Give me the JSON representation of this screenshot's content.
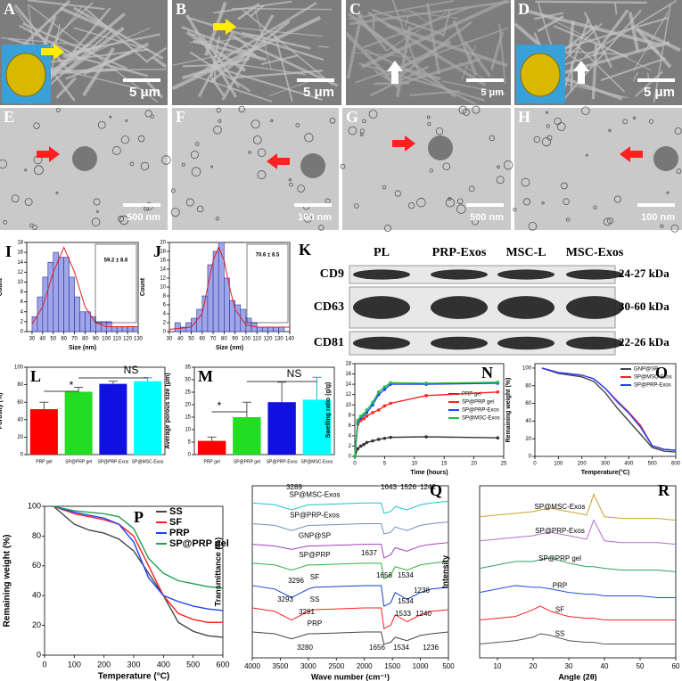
{
  "images": [
    {
      "label": "A",
      "scale": "5 μm"
    },
    {
      "label": "B",
      "scale": "5 μm"
    },
    {
      "label": "C",
      "scale": "5 μm"
    },
    {
      "label": "D",
      "scale": "5 μm"
    },
    {
      "label": "E",
      "scale": "500 nm"
    },
    {
      "label": "F",
      "scale": "100 nm"
    },
    {
      "label": "G",
      "scale": "500 nm"
    },
    {
      "label": "H",
      "scale": "100 nm"
    }
  ],
  "western_blot": {
    "panel": "K",
    "lanes": [
      "PL",
      "PRP-Exos",
      "MSC-L",
      "MSC-Exos"
    ],
    "markers": [
      "CD9",
      "CD63",
      "CD81"
    ],
    "sizes": [
      "24-27 kDa",
      "30-60 kDa",
      "22-26 kDa"
    ]
  },
  "chart_data": [
    {
      "type": "histogram",
      "panel": "I",
      "xlabel": "Size (nm)",
      "ylabel": "Count",
      "annotations": [
        "59.2 ± 8.6"
      ],
      "color": "#9fa6e8",
      "bins": [
        30,
        35,
        40,
        45,
        50,
        55,
        60,
        65,
        70,
        75,
        80,
        85,
        90,
        95,
        100,
        105,
        110,
        115,
        120,
        125,
        130
      ],
      "values": [
        3,
        7,
        11,
        14,
        16,
        15,
        15,
        11,
        7,
        4,
        4,
        3,
        2,
        2,
        2,
        1,
        1,
        1,
        1,
        1
      ],
      "fit": {
        "x": [
          30,
          40,
          50,
          60,
          70,
          80,
          90,
          100,
          110,
          120,
          130
        ],
        "values": [
          1.5,
          5,
          12,
          17,
          12,
          5,
          1.8,
          1,
          1,
          1,
          1
        ]
      },
      "xlim": [
        25,
        130
      ],
      "xticks": [
        30,
        40,
        50,
        60,
        70,
        80,
        90,
        100,
        110,
        120,
        130
      ],
      "ylim": [
        0,
        18
      ],
      "yticks": [
        0,
        2,
        4,
        6,
        8,
        10,
        12,
        14,
        16,
        18
      ]
    },
    {
      "type": "histogram",
      "panel": "J",
      "xlabel": "Size (nm)",
      "ylabel": "Count",
      "annotations": [
        "70.6 ± 8.5"
      ],
      "color": "#9fa6e8",
      "bins": [
        35,
        40,
        45,
        50,
        55,
        60,
        65,
        70,
        75,
        80,
        85,
        90,
        95,
        100,
        105,
        110,
        115,
        120,
        125,
        130,
        135
      ],
      "values": [
        2,
        1,
        2,
        3,
        5,
        8,
        15,
        18,
        20,
        12,
        7,
        6,
        5,
        3,
        2,
        1,
        1,
        1,
        1,
        1
      ],
      "fit": {
        "x": [
          30,
          50,
          60,
          65,
          70,
          75,
          80,
          85,
          90,
          100,
          110,
          140
        ],
        "values": [
          0.5,
          1,
          4,
          10,
          16,
          19,
          16,
          10,
          5,
          1.5,
          1,
          1
        ]
      },
      "xlim": [
        30,
        140
      ],
      "xticks": [
        30,
        40,
        50,
        60,
        70,
        80,
        90,
        100,
        110,
        120,
        130,
        140
      ],
      "ylim": [
        0,
        20
      ],
      "yticks": [
        0,
        2,
        4,
        6,
        8,
        10,
        12,
        14,
        16,
        18,
        20
      ]
    },
    {
      "type": "bar",
      "panel": "L",
      "ylabel": "Porosity (%)",
      "annotations": [
        "*",
        "NS"
      ],
      "categories": [
        "PRP gel",
        "SP@PRP gel",
        "SP@PRP-Exos",
        "SP@MSC-Exos"
      ],
      "values": [
        52,
        72,
        81,
        84
      ],
      "errors": [
        8,
        5,
        3,
        4
      ],
      "colors": [
        "#ff0000",
        "#22dd22",
        "#1010e0",
        "#00ffff"
      ],
      "ylim": [
        0,
        100
      ],
      "yticks": [
        0,
        20,
        40,
        60,
        80,
        100
      ]
    },
    {
      "type": "bar",
      "panel": "M",
      "ylabel": "Average porous size (μm)",
      "annotations": [
        "*",
        "NS"
      ],
      "categories": [
        "PRP gel",
        "SP@PRP gel",
        "SP@PRP-Exos",
        "SP@MSC-Exos"
      ],
      "values": [
        5.5,
        15,
        21,
        22
      ],
      "errors": [
        1.5,
        6,
        8,
        9
      ],
      "colors": [
        "#ff0000",
        "#22dd22",
        "#1010e0",
        "#00ffff"
      ],
      "ylim": [
        0,
        35
      ],
      "yticks": [
        0,
        5,
        10,
        15,
        20,
        25,
        30,
        35
      ]
    },
    {
      "type": "line",
      "panel": "N",
      "xlabel": "Time (hours)",
      "ylabel": "Swelling ratio (g/g)",
      "legend": "center right",
      "marker": true,
      "x": [
        0,
        0.5,
        1,
        1.5,
        2,
        3,
        4,
        5,
        6,
        12,
        24
      ],
      "series": [
        {
          "name": "PRP gel",
          "color": "#333333",
          "values": [
            0,
            1.5,
            2.0,
            2.3,
            2.7,
            3.0,
            3.3,
            3.5,
            3.7,
            3.8,
            3.6
          ]
        },
        {
          "name": "SP@PRP gel",
          "color": "#ff2020",
          "values": [
            0,
            6.2,
            7.0,
            7.3,
            7.8,
            8.5,
            9.0,
            9.8,
            10.3,
            11.8,
            12.5
          ]
        },
        {
          "name": "SP@PRP-Exos",
          "color": "#2040ff",
          "values": [
            0,
            6.5,
            7.5,
            8.0,
            8.5,
            10,
            12,
            13,
            14,
            14,
            14.2
          ]
        },
        {
          "name": "SP@MSC-Exos",
          "color": "#20c040",
          "values": [
            0,
            7,
            7.8,
            8.2,
            9,
            10.5,
            12.5,
            13.5,
            14.3,
            14.2,
            14.4
          ]
        }
      ],
      "xlim": [
        0,
        25
      ],
      "xticks": [
        0,
        5,
        10,
        15,
        20,
        25
      ],
      "ylim": [
        0,
        18
      ],
      "yticks": [
        0,
        2,
        4,
        6,
        8,
        10,
        12,
        14,
        16,
        18
      ]
    },
    {
      "type": "line",
      "panel": "O",
      "xlabel": "Temperature(°C)",
      "ylabel": "Remaining weight (%)",
      "legend": "upper right",
      "marker": false,
      "x": [
        30,
        100,
        200,
        250,
        300,
        350,
        400,
        450,
        500,
        550,
        600
      ],
      "series": [
        {
          "name": "GNP@SP",
          "color": "#444444",
          "values": [
            100,
            94,
            90,
            85,
            72,
            55,
            40,
            25,
            10,
            6,
            5
          ]
        },
        {
          "name": "SP@MSC-Exos",
          "color": "#ff2020",
          "values": [
            100,
            95,
            92,
            88,
            77,
            63,
            50,
            35,
            12,
            8,
            7
          ]
        },
        {
          "name": "SP@PRP-Exos",
          "color": "#2040ff",
          "values": [
            100,
            95,
            92,
            88,
            77,
            62,
            49,
            33,
            12,
            8,
            7
          ]
        }
      ],
      "xlim": [
        0,
        600
      ],
      "xticks": [
        0,
        100,
        200,
        300,
        400,
        500,
        600
      ],
      "ylim": [
        0,
        105
      ],
      "yticks": [
        0,
        20,
        40,
        60,
        80,
        100
      ]
    },
    {
      "type": "line",
      "panel": "P",
      "xlabel": "Temperature (°C)",
      "ylabel": "Remaining weight (%)",
      "legend": "upper right",
      "marker": false,
      "x": [
        30,
        100,
        150,
        200,
        250,
        300,
        350,
        400,
        450,
        500,
        550,
        600
      ],
      "series": [
        {
          "name": "SS",
          "color": "#444444",
          "values": [
            100,
            88,
            84,
            82,
            78,
            70,
            55,
            40,
            22,
            16,
            13,
            12
          ]
        },
        {
          "name": "SF",
          "color": "#ff2020",
          "values": [
            100,
            95,
            93,
            91,
            88,
            80,
            60,
            40,
            28,
            24,
            22,
            22
          ]
        },
        {
          "name": "PRP",
          "color": "#2040ff",
          "values": [
            100,
            96,
            94,
            92,
            88,
            76,
            52,
            40,
            36,
            33,
            31,
            30
          ]
        },
        {
          "name": "SP@PRP gel",
          "color": "#20a050",
          "values": [
            100,
            97,
            96,
            95,
            93,
            85,
            65,
            55,
            50,
            48,
            46,
            45
          ]
        }
      ],
      "xlim": [
        0,
        600
      ],
      "xticks": [
        0,
        100,
        200,
        300,
        400,
        500,
        600
      ],
      "ylim": [
        0,
        100
      ],
      "yticks": [
        0,
        20,
        40,
        60,
        80,
        100
      ]
    },
    {
      "type": "line",
      "panel": "Q",
      "xlabel": "Wave number (cm⁻¹)",
      "ylabel": "Transmittance (%)",
      "legend": "inline",
      "marker": false,
      "annotations": [
        "3289",
        "1643",
        "1526",
        "1242",
        "1637",
        "3296",
        "1656",
        "1534",
        "1238",
        "3293",
        "3291",
        "1534",
        "1533",
        "1240",
        "3280",
        "1656",
        "1534",
        "1236"
      ],
      "x": [
        4000,
        3600,
        3300,
        3000,
        2900,
        2000,
        1700,
        1650,
        1530,
        1450,
        1240,
        1000,
        800,
        500
      ],
      "series": [
        {
          "name": "SP@MSC-Exos",
          "color": "#20c0d0",
          "values": [
            90,
            89,
            86,
            89,
            89,
            90,
            90,
            84,
            85,
            88,
            86,
            89,
            90,
            91
          ]
        },
        {
          "name": "SP@PRP-Exos",
          "color": "#7090c0",
          "values": [
            78,
            77,
            74,
            77,
            77,
            78,
            78,
            72,
            73,
            76,
            74,
            77,
            78,
            79
          ]
        },
        {
          "name": "GNP@SP",
          "color": "#a040c0",
          "values": [
            66,
            65,
            63,
            65,
            65,
            66,
            66,
            58,
            60,
            64,
            62,
            65,
            66,
            67
          ]
        },
        {
          "name": "SP@PRP",
          "color": "#30b040",
          "values": [
            55,
            54,
            51,
            54,
            54,
            55,
            55,
            46,
            48,
            53,
            51,
            54,
            55,
            56
          ]
        },
        {
          "name": "SF",
          "color": "#1040d0",
          "values": [
            42,
            40,
            35,
            40,
            41,
            42,
            42,
            30,
            32,
            38,
            34,
            38,
            40,
            41
          ]
        },
        {
          "name": "SS",
          "color": "#ff2020",
          "values": [
            29,
            27,
            22,
            27,
            28,
            29,
            29,
            17,
            19,
            25,
            21,
            25,
            27,
            28
          ]
        },
        {
          "name": "PRP",
          "color": "#444444",
          "values": [
            15,
            14,
            11,
            14,
            14,
            15,
            15,
            8,
            9,
            12,
            10,
            13,
            14,
            15
          ]
        }
      ],
      "xlim": [
        4000,
        500
      ],
      "xticks": [
        4000,
        3500,
        3000,
        2500,
        2000,
        1500,
        1000,
        500
      ],
      "ylim": [
        0,
        100
      ]
    },
    {
      "type": "line",
      "panel": "R",
      "xlabel": "Angle (2θ)",
      "ylabel": "Intensity",
      "legend": "inline",
      "marker": false,
      "x": [
        5,
        10,
        15,
        20,
        22,
        25,
        30,
        35,
        37,
        40,
        45,
        50,
        55,
        60
      ],
      "series": [
        {
          "name": "SP@MSC-Exos",
          "color": "#c8a030",
          "values": [
            82,
            83,
            84,
            85,
            86,
            87,
            85,
            83,
            95,
            82,
            81,
            81,
            81,
            80
          ]
        },
        {
          "name": "SP@PRP-Exos",
          "color": "#b070d0",
          "values": [
            68,
            69,
            70,
            71,
            72,
            73,
            71,
            69,
            80,
            68,
            67,
            67,
            67,
            66
          ]
        },
        {
          "name": "SP@PRP gel",
          "color": "#30a060",
          "values": [
            52,
            54,
            56,
            56,
            57,
            58,
            55,
            53,
            53,
            52,
            51,
            51,
            51,
            50
          ]
        },
        {
          "name": "PRP",
          "color": "#2050e0",
          "values": [
            38,
            40,
            42,
            41,
            41,
            40,
            38,
            37,
            37,
            36,
            36,
            36,
            35,
            35
          ]
        },
        {
          "name": "SF",
          "color": "#ff2020",
          "values": [
            22,
            23,
            24,
            28,
            30,
            27,
            24,
            23,
            23,
            22,
            22,
            22,
            22,
            22
          ]
        },
        {
          "name": "SS",
          "color": "#555555",
          "values": [
            8,
            9,
            10,
            12,
            14,
            13,
            10,
            9,
            9,
            8,
            8,
            8,
            8,
            8
          ]
        }
      ],
      "xlim": [
        5,
        60
      ],
      "xticks": [
        10,
        20,
        30,
        40,
        50,
        60
      ],
      "ylim": [
        0,
        100
      ]
    }
  ]
}
